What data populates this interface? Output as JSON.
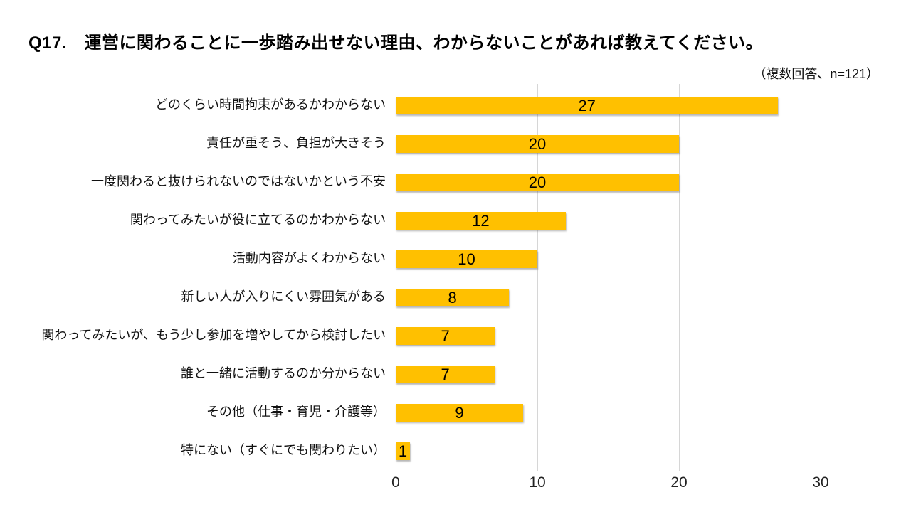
{
  "title": "Q17.　運営に関わることに一歩踏み出せない理由、わからないことがあれば教えてください。",
  "subtitle": "（複数回答、n=121）",
  "chart_data": {
    "type": "bar",
    "orientation": "horizontal",
    "title": "Q17.　運営に関わることに一歩踏み出せない理由、わからないことがあれば教えてください。",
    "note": "（複数回答、n=121）",
    "categories": [
      "どのくらい時間拘束があるかわからない",
      "責任が重そう、負担が大きそう",
      "一度関わると抜けられないのではないかという不安",
      "関わってみたいが役に立てるのかわからない",
      "活動内容がよくわからない",
      "新しい人が入りにくい雰囲気がある",
      "関わってみたいが、もう少し参加を増やしてから検討したい",
      "誰と一緒に活動するのか分からない",
      "その他（仕事・育児・介護等）",
      "特にない（すぐにでも関わりたい）"
    ],
    "values": [
      27,
      20,
      20,
      12,
      10,
      8,
      7,
      7,
      9,
      1
    ],
    "xlabel": "",
    "ylabel": "",
    "xlim": [
      0,
      30
    ],
    "xticks": [
      0,
      10,
      20,
      30
    ],
    "grid": true,
    "data_labels": "inside-center",
    "bar_color": "#FFC000",
    "gridline_color": "#d6d6d6",
    "text_color": "#000000"
  }
}
